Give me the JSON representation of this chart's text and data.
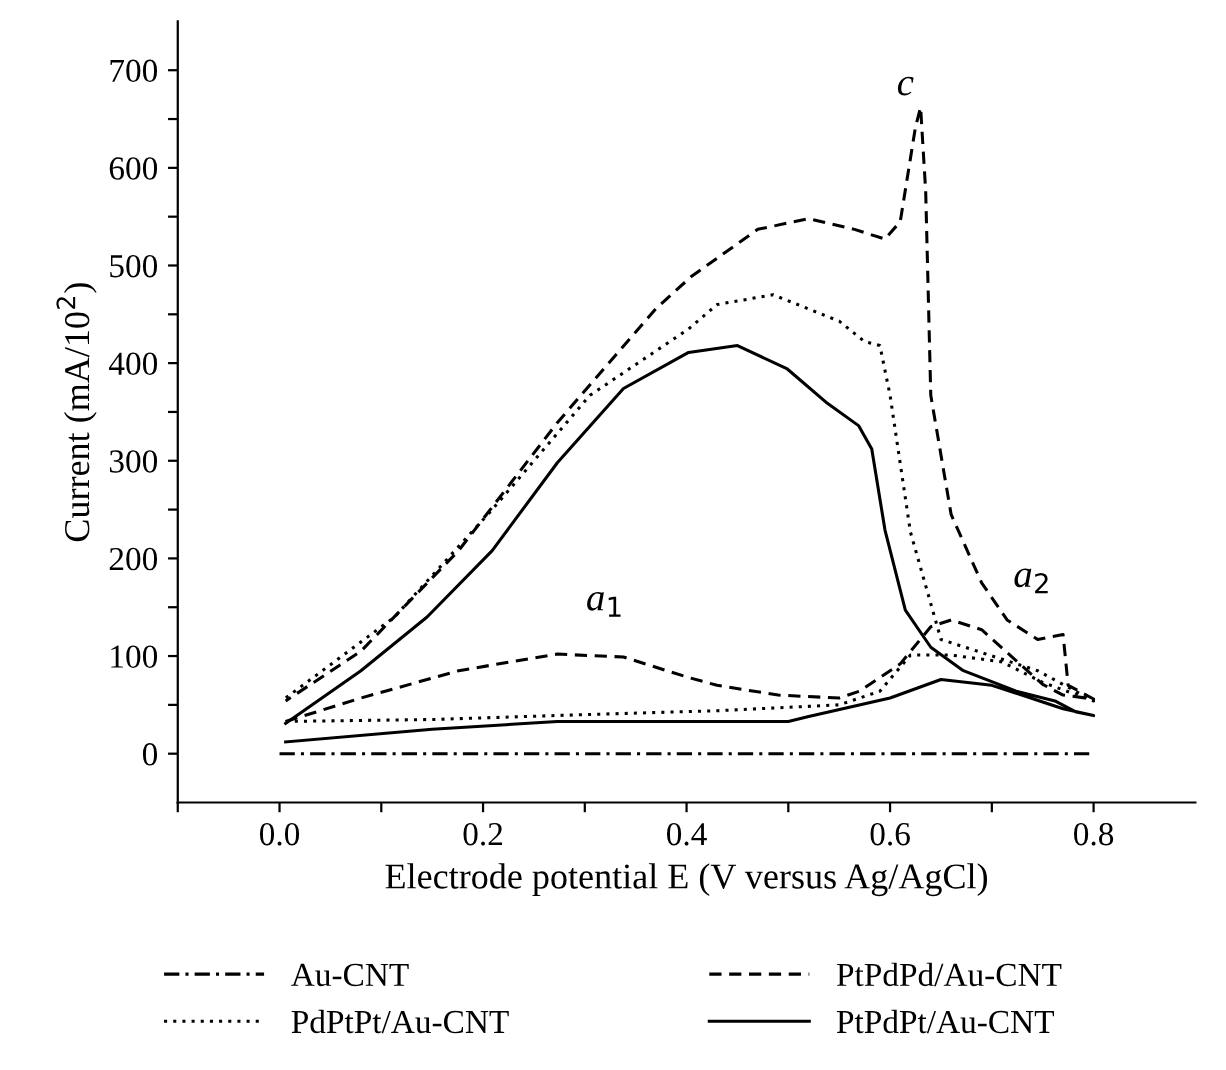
{
  "chart_data": {
    "type": "line",
    "xlabel": "Electrode potential E (V versus Ag/AgCl)",
    "ylabel": "Current (mA/10$^{2}$)",
    "xlim": [
      -0.1,
      0.9
    ],
    "ylim": [
      -50,
      750
    ],
    "xticks": [
      {
        "value": -0.1,
        "label": null
      },
      {
        "value": 0.0,
        "label": "0.0"
      },
      {
        "value": 0.1,
        "label": null
      },
      {
        "value": 0.2,
        "label": "0.2"
      },
      {
        "value": 0.3,
        "label": null
      },
      {
        "value": 0.4,
        "label": "0.4"
      },
      {
        "value": 0.5,
        "label": null
      },
      {
        "value": 0.6,
        "label": "0.6"
      },
      {
        "value": 0.7,
        "label": null
      },
      {
        "value": 0.8,
        "label": "0.8"
      }
    ],
    "yticks": [
      0,
      {
        "value": 50,
        "label": null
      },
      100,
      {
        "value": 150,
        "label": null
      },
      200,
      {
        "value": 250,
        "label": null
      },
      300,
      {
        "value": 350,
        "label": null
      },
      400,
      {
        "value": 450,
        "label": null
      },
      500,
      {
        "value": 550,
        "label": null
      },
      600,
      {
        "value": 650,
        "label": null
      },
      700
    ],
    "grid": false,
    "legend": "bottom",
    "marker": "none",
    "series": [
      {
        "name": "Au-CNT",
        "color": "#000000",
        "line_style": "dashdot",
        "x": [
          0.0,
          0.2,
          0.4,
          0.6,
          0.8
        ],
        "values": [
          0,
          0,
          0,
          0,
          0
        ]
      },
      {
        "name": "PdPtPt/Au-CNT",
        "color": "#000000",
        "line_style": "dotted",
        "x": [
          0.006,
          0.15,
          0.3,
          0.43,
          0.55,
          0.59,
          0.62,
          0.66,
          0.71,
          0.75,
          0.8,
          0.745,
          0.65,
          0.62,
          0.6,
          0.59,
          0.575,
          0.55,
          0.485,
          0.43,
          0.402,
          0.305,
          0.209,
          0.113,
          0.006
        ],
        "values": [
          33,
          35,
          40,
          44,
          50,
          64,
          101,
          101,
          94,
          73,
          54,
          85,
          117,
          227,
          367,
          418,
          422,
          443,
          470,
          460,
          435,
          367,
          250,
          140,
          57
        ]
      },
      {
        "name": "PtPdPd/Au-CNT",
        "color": "#000000",
        "line_style": "dashed",
        "x": [
          0.006,
          0.08,
          0.176,
          0.273,
          0.338,
          0.402,
          0.43,
          0.49,
          0.55,
          0.57,
          0.61,
          0.64,
          0.66,
          0.69,
          0.72,
          0.75,
          0.77,
          0.8,
          0.775,
          0.77,
          0.745,
          0.715,
          0.69,
          0.66,
          0.64,
          0.635,
          0.63,
          0.625,
          0.61,
          0.595,
          0.565,
          0.52,
          0.47,
          0.405,
          0.37,
          0.273,
          0.176,
          0.08,
          0.006
        ],
        "values": [
          33,
          57,
          85,
          102,
          99,
          78,
          70,
          60,
          57,
          64,
          92,
          130,
          137,
          127,
          99,
          71,
          60,
          56,
          70,
          122,
          117,
          137,
          175,
          245,
          367,
          576,
          662,
          642,
          545,
          527,
          537,
          548,
          537,
          489,
          456,
          339,
          208,
          105,
          54
        ]
      },
      {
        "name": "PtPdPt/Au-CNT",
        "color": "#000000",
        "line_style": "solid",
        "x": [
          0.006,
          0.15,
          0.273,
          0.4,
          0.5,
          0.52,
          0.6,
          0.65,
          0.7,
          0.75,
          0.77,
          0.8,
          0.782,
          0.762,
          0.724,
          0.672,
          0.64,
          0.615,
          0.595,
          0.582,
          0.569,
          0.537,
          0.499,
          0.45,
          0.402,
          0.338,
          0.273,
          0.209,
          0.145,
          0.08,
          0.006
        ],
        "values": [
          12,
          25,
          33,
          33,
          33,
          38,
          57,
          76,
          70,
          53,
          46,
          39,
          43,
          54,
          64,
          85,
          109,
          147,
          229,
          312,
          336,
          360,
          394,
          418,
          411,
          374,
          298,
          208,
          140,
          85,
          31
        ]
      }
    ],
    "annotations": [
      "a$_{1}$",
      "c",
      "a$_{2}$"
    ]
  }
}
